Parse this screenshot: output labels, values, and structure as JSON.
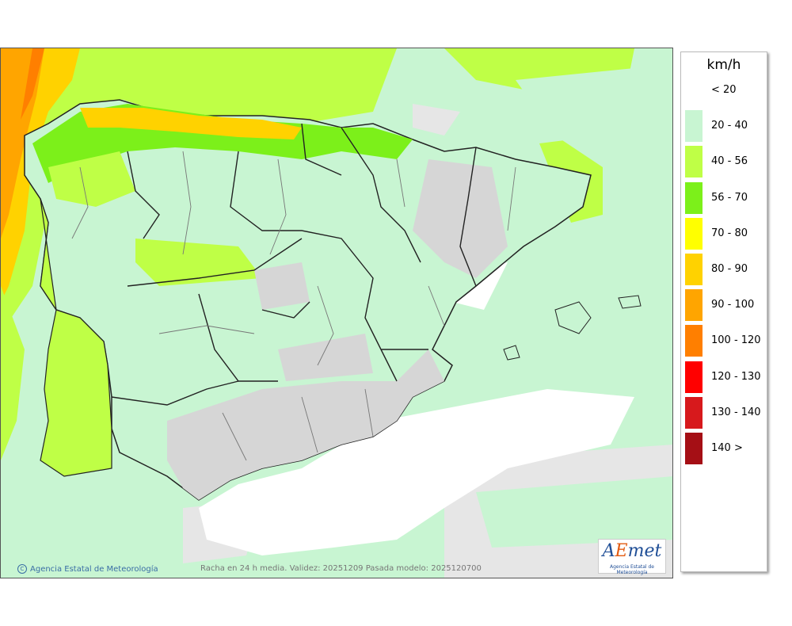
{
  "legend": {
    "unit": "km/h",
    "entries": [
      {
        "label": "< 20",
        "color": "#ffffff"
      },
      {
        "label": "20 - 40",
        "color": "#c8f5d2"
      },
      {
        "label": "40 - 56",
        "color": "#bfff46"
      },
      {
        "label": "56 - 70",
        "color": "#7cf01a"
      },
      {
        "label": "70 - 80",
        "color": "#ffff00"
      },
      {
        "label": "80 - 90",
        "color": "#ffd200"
      },
      {
        "label": "90 - 100",
        "color": "#ffa500"
      },
      {
        "label": "100 - 120",
        "color": "#ff7f00"
      },
      {
        "label": "120 - 130",
        "color": "#ff0000"
      },
      {
        "label": "130 - 140",
        "color": "#d7191c"
      },
      {
        "label": "140 >",
        "color": "#a50f15"
      }
    ]
  },
  "footer": {
    "credit": "Agencia Estatal de Meteorología",
    "credit_icon": "copyright-icon",
    "caption": "Racha en 24 h media. Validez: 20251209 Pasada modelo: 2025120700"
  },
  "logo": {
    "word_a": "A",
    "word_e": "E",
    "word_rest": "met",
    "subtitle": "Agencia Estatal de Meteorología"
  },
  "map": {
    "land_relief": "#d6d6d6",
    "sea_white": "#ffffff",
    "border_color": "#222222",
    "province_color": "#777777"
  }
}
